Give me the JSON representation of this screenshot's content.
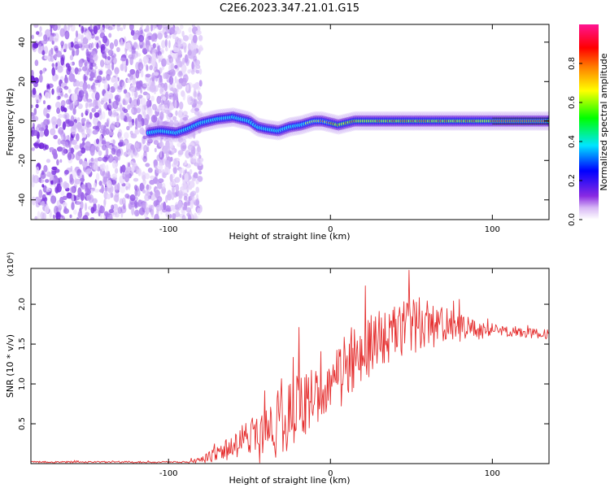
{
  "title": "C2E6.2023.347.21.01.G15",
  "chart_data": [
    {
      "type": "heatmap",
      "xlabel": "Height of straight line (km)",
      "ylabel": "Frequency (Hz)",
      "xlim": [
        -185,
        135
      ],
      "ylim": [
        -50,
        49
      ],
      "x_ticks": [
        -100,
        0,
        100
      ],
      "y_ticks": [
        -40,
        -20,
        0,
        20,
        40
      ],
      "colorbar": {
        "label": "Normalized spectral amplitude",
        "range": [
          0,
          1
        ],
        "ticks": [
          "0.0",
          "0.2",
          "0.4",
          "0.6",
          "0.8"
        ],
        "colors": [
          "#ffffff",
          "#8a2be2",
          "#0000ff",
          "#00e5ff",
          "#00ff00",
          "#ffff00",
          "#ff8000",
          "#ff0000",
          "#ff1493"
        ]
      },
      "noise_region_x": [
        -185,
        -85
      ],
      "ridge_frequency_track": {
        "x": [
          -112,
          -105,
          -95,
          -88,
          -80,
          -70,
          -60,
          -50,
          -45,
          -40,
          -32,
          -25,
          -18,
          -10,
          -5,
          0,
          5,
          15,
          30,
          50,
          80,
          105,
          135
        ],
        "y": [
          -6,
          -5,
          -6,
          -4,
          -1,
          1,
          2,
          0,
          -3,
          -4,
          -5,
          -3,
          -2,
          0,
          0,
          -1,
          -2,
          0,
          0,
          0,
          0,
          0,
          0
        ]
      }
    },
    {
      "type": "line",
      "xlabel": "Height of straight line (km)",
      "ylabel": "SNR (10 * v/v)",
      "y_multiplier": "(x10⁴)",
      "xlim": [
        -185,
        135
      ],
      "ylim": [
        0,
        2.45
      ],
      "x_ticks": [
        -100,
        0,
        100
      ],
      "y_ticks": [
        "0.5",
        "1.0",
        "1.5",
        "2.0"
      ],
      "series_color": "#e53030",
      "envelope": {
        "x": [
          -185,
          -90,
          -80,
          -70,
          -60,
          -50,
          -40,
          -30,
          -20,
          -10,
          0,
          10,
          20,
          30,
          40,
          50,
          60,
          70,
          80,
          90,
          100,
          110,
          120,
          135
        ],
        "mean": [
          0.02,
          0.02,
          0.04,
          0.12,
          0.22,
          0.3,
          0.4,
          0.55,
          0.68,
          0.85,
          1.0,
          1.2,
          1.4,
          1.55,
          1.65,
          1.72,
          1.75,
          1.72,
          1.7,
          1.68,
          1.66,
          1.65,
          1.64,
          1.62
        ],
        "spread": [
          0.01,
          0.01,
          0.04,
          0.1,
          0.18,
          0.28,
          0.4,
          0.45,
          0.45,
          0.4,
          0.35,
          0.45,
          0.4,
          0.35,
          0.35,
          0.35,
          0.3,
          0.25,
          0.18,
          0.12,
          0.1,
          0.07,
          0.06,
          0.06
        ]
      }
    }
  ]
}
